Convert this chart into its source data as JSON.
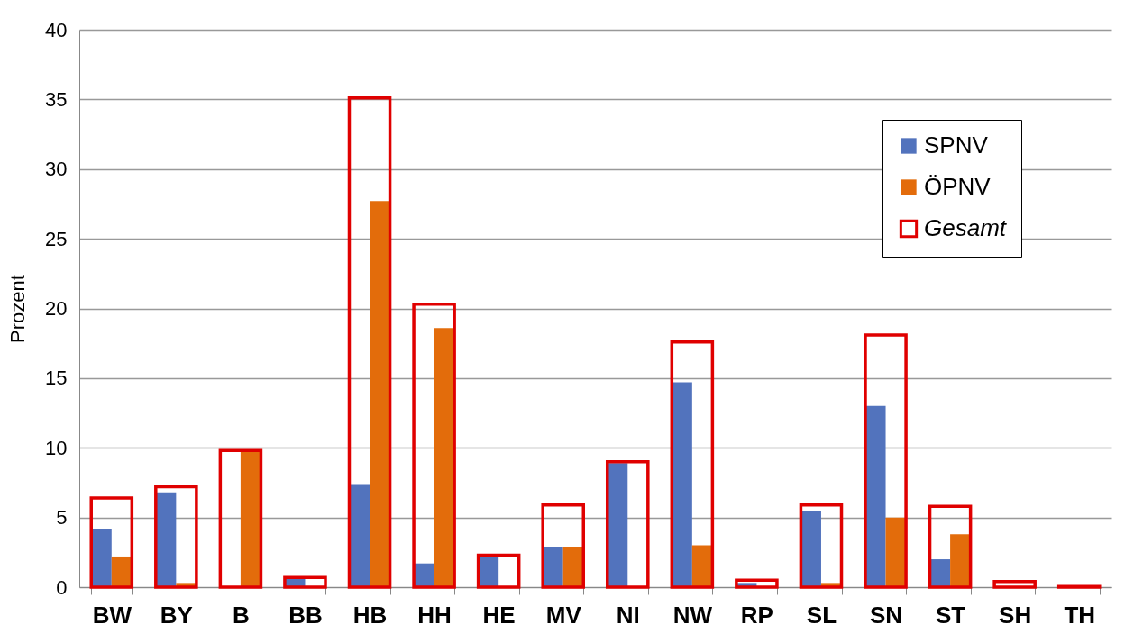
{
  "chart_data": {
    "type": "bar",
    "ylabel": "Prozent",
    "categories": [
      "BW",
      "BY",
      "B",
      "BB",
      "HB",
      "HH",
      "HE",
      "MV",
      "NI",
      "NW",
      "RP",
      "SL",
      "SN",
      "ST",
      "SH",
      "TH"
    ],
    "series": [
      {
        "name": "SPNV",
        "color": "#5273bd",
        "values": [
          4.2,
          6.8,
          0,
          0.6,
          7.4,
          1.7,
          2.2,
          2.9,
          8.9,
          14.7,
          0.3,
          5.5,
          13.0,
          2.0,
          null,
          0
        ]
      },
      {
        "name": "ÖPNV",
        "color": "#e36c0b",
        "values": [
          2.2,
          0.3,
          9.8,
          0,
          27.7,
          18.6,
          null,
          2.9,
          0,
          3.0,
          null,
          0.3,
          5.0,
          3.8,
          null,
          0
        ]
      },
      {
        "name": "Gesamt",
        "color": "#e00000",
        "values": [
          6.4,
          7.2,
          9.8,
          0.7,
          35.1,
          20.3,
          2.3,
          5.9,
          9.0,
          17.6,
          0.5,
          5.9,
          18.1,
          5.8,
          0.4,
          0.05
        ]
      }
    ],
    "ylim": [
      0,
      40
    ],
    "yticks": [
      0,
      5,
      10,
      15,
      20,
      25,
      30,
      35,
      40
    ],
    "grid": "y",
    "legend": "top right"
  }
}
